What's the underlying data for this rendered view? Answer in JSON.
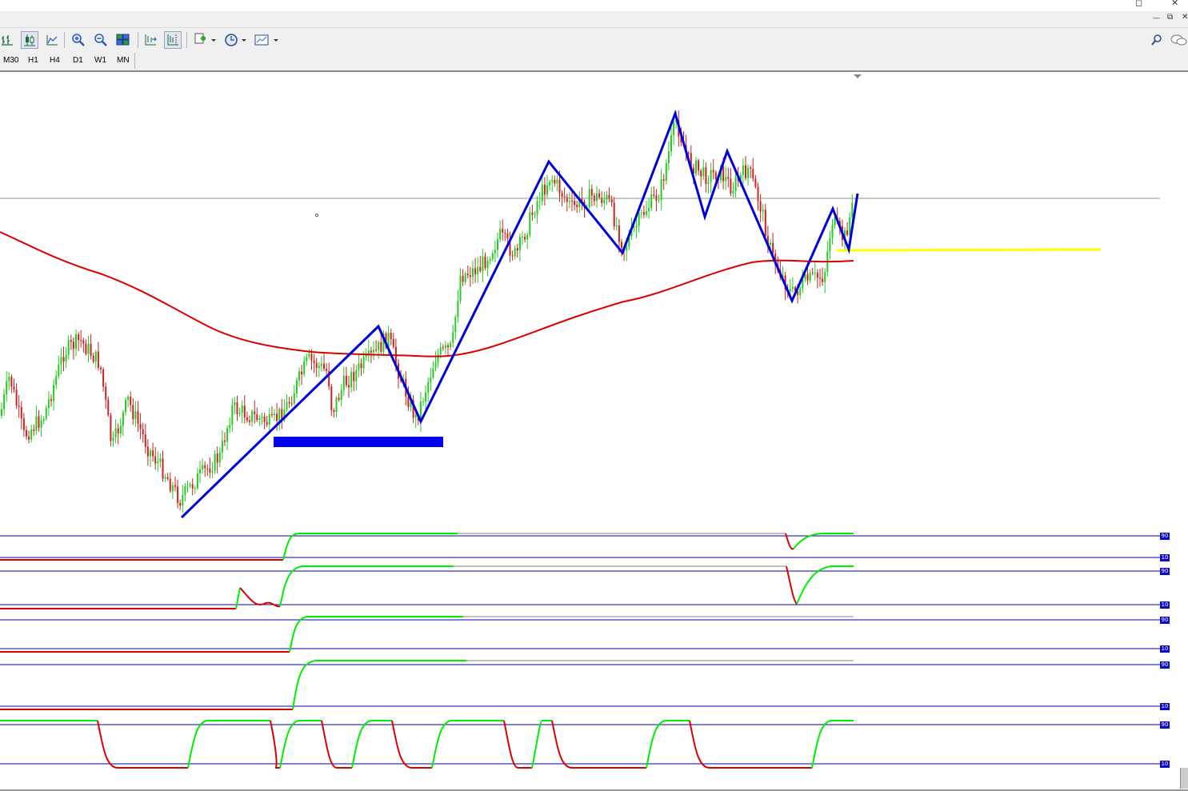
{
  "window": {
    "controls": [
      "—",
      "⧉",
      "✕"
    ],
    "outer_controls": [
      "◻",
      "✕"
    ]
  },
  "toolbar": {
    "buttons": [
      {
        "name": "bar-chart-icon",
        "active": false
      },
      {
        "name": "candlestick-chart-icon",
        "active": true
      },
      {
        "name": "line-chart-icon",
        "active": false
      },
      {
        "name": "zoom-in-icon",
        "active": false
      },
      {
        "name": "zoom-out-icon",
        "active": false
      },
      {
        "name": "tile-windows-icon",
        "active": false
      },
      {
        "name": "auto-scroll-icon",
        "active": false
      },
      {
        "name": "chart-shift-icon",
        "active": false
      },
      {
        "name": "indicators-icon",
        "active": false
      },
      {
        "name": "periods-clock-icon",
        "active": false
      },
      {
        "name": "templates-icon",
        "active": false
      }
    ],
    "right_icons": [
      "search-icon",
      "chat-icon"
    ]
  },
  "timeframes": [
    "M30",
    "H1",
    "H4",
    "D1",
    "W1",
    "MN"
  ],
  "colors": {
    "bull_candle": "#22cc22",
    "bear_candle": "#cc2222",
    "zigzag": "#0000dd",
    "moving_average": "#dd0000",
    "yellow_level": "#ffff00",
    "support_box": "#0000ee",
    "price_line": "#7f9f7f",
    "indicator_up": "#00ee00",
    "indicator_down": "#dd0000",
    "indicator_neutral": "#c0c0c0",
    "level_line": "#0000aa"
  },
  "chart_data": {
    "type": "candlestick",
    "note_zigzag": "swing points of the zigzag overlay",
    "zigzag_swings": [
      "low",
      "high",
      "low",
      "high",
      "low",
      "high",
      "low",
      "high",
      "low",
      "high",
      "low",
      "high"
    ],
    "indicator_panes": 5
  },
  "indicator_axis_labels": [
    "90",
    "10",
    "90",
    "10",
    "90",
    "10",
    "90",
    "10",
    "90",
    "10"
  ]
}
